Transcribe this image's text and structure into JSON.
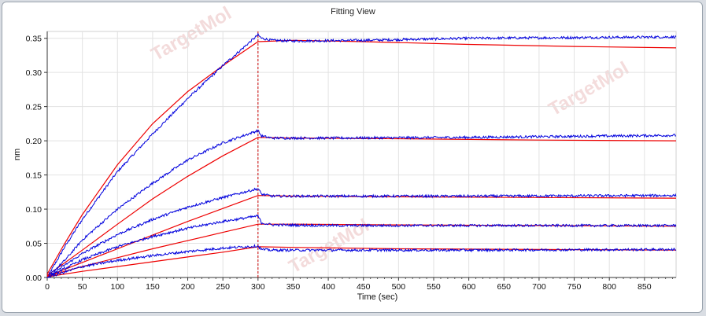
{
  "window": {
    "title": "Fitting View"
  },
  "watermark": {
    "text": "TargetMol"
  },
  "chart_data": {
    "type": "line",
    "title": "Fitting View",
    "xlabel": "Time (sec)",
    "ylabel": "nm",
    "xlim": [
      0,
      895
    ],
    "ylim": [
      0,
      0.36
    ],
    "xticks": [
      0,
      50,
      100,
      150,
      200,
      250,
      300,
      350,
      400,
      450,
      500,
      550,
      600,
      650,
      700,
      750,
      800,
      850
    ],
    "yticks": [
      0.0,
      0.05,
      0.1,
      0.15,
      0.2,
      0.25,
      0.3,
      0.35
    ],
    "ytick_labels": [
      "0.00",
      "0.05",
      "0.10",
      "0.15",
      "0.20",
      "0.25",
      "0.30",
      "0.35"
    ],
    "grid": true,
    "vline": {
      "x": 300,
      "color": "#cc0000",
      "style": "dashed"
    },
    "colors": {
      "measured": "#0000dd",
      "fit": "#ee0000"
    },
    "series": [
      {
        "measured": {
          "x": [
            0,
            25,
            50,
            100,
            150,
            200,
            250,
            300,
            305,
            320,
            350,
            450,
            600,
            750,
            895
          ],
          "y": [
            0.0,
            0.045,
            0.085,
            0.155,
            0.21,
            0.262,
            0.31,
            0.355,
            0.35,
            0.347,
            0.346,
            0.347,
            0.35,
            0.351,
            0.352
          ]
        },
        "fit": {
          "x": [
            0,
            25,
            50,
            100,
            150,
            200,
            250,
            300,
            350,
            450,
            600,
            750,
            895
          ],
          "y": [
            0.005,
            0.05,
            0.092,
            0.165,
            0.225,
            0.272,
            0.31,
            0.345,
            0.347,
            0.345,
            0.341,
            0.338,
            0.336
          ]
        }
      },
      {
        "measured": {
          "x": [
            0,
            25,
            50,
            100,
            150,
            200,
            250,
            300,
            305,
            320,
            400,
            600,
            895
          ],
          "y": [
            0.0,
            0.025,
            0.055,
            0.1,
            0.138,
            0.172,
            0.197,
            0.215,
            0.207,
            0.204,
            0.204,
            0.205,
            0.208
          ]
        },
        "fit": {
          "x": [
            0,
            50,
            100,
            150,
            200,
            250,
            300,
            350,
            500,
            700,
            895
          ],
          "y": [
            0.003,
            0.04,
            0.078,
            0.115,
            0.148,
            0.178,
            0.205,
            0.204,
            0.203,
            0.201,
            0.2
          ]
        }
      },
      {
        "measured": {
          "x": [
            0,
            25,
            50,
            100,
            150,
            200,
            250,
            300,
            305,
            320,
            400,
            600,
            895
          ],
          "y": [
            0.0,
            0.018,
            0.035,
            0.063,
            0.085,
            0.103,
            0.117,
            0.13,
            0.122,
            0.119,
            0.119,
            0.119,
            0.12
          ]
        },
        "fit": {
          "x": [
            0,
            50,
            100,
            150,
            200,
            250,
            300,
            350,
            500,
            700,
            895
          ],
          "y": [
            0.002,
            0.022,
            0.042,
            0.062,
            0.082,
            0.101,
            0.12,
            0.119,
            0.118,
            0.117,
            0.116
          ]
        }
      },
      {
        "measured": {
          "x": [
            0,
            25,
            50,
            100,
            150,
            200,
            250,
            300,
            305,
            320,
            400,
            600,
            895
          ],
          "y": [
            0.0,
            0.013,
            0.026,
            0.045,
            0.06,
            0.072,
            0.082,
            0.09,
            0.08,
            0.077,
            0.076,
            0.076,
            0.076
          ]
        },
        "fit": {
          "x": [
            0,
            50,
            100,
            150,
            200,
            250,
            300,
            350,
            500,
            700,
            895
          ],
          "y": [
            0.002,
            0.016,
            0.029,
            0.042,
            0.054,
            0.066,
            0.078,
            0.078,
            0.077,
            0.076,
            0.075
          ]
        }
      },
      {
        "measured": {
          "x": [
            0,
            25,
            50,
            100,
            150,
            200,
            250,
            300,
            305,
            320,
            400,
            600,
            895
          ],
          "y": [
            0.0,
            0.008,
            0.016,
            0.025,
            0.032,
            0.038,
            0.043,
            0.046,
            0.041,
            0.04,
            0.04,
            0.04,
            0.041
          ]
        },
        "fit": {
          "x": [
            0,
            50,
            100,
            150,
            200,
            250,
            300,
            350,
            500,
            700,
            895
          ],
          "y": [
            0.001,
            0.009,
            0.016,
            0.023,
            0.03,
            0.037,
            0.045,
            0.044,
            0.042,
            0.041,
            0.04
          ]
        }
      }
    ]
  }
}
